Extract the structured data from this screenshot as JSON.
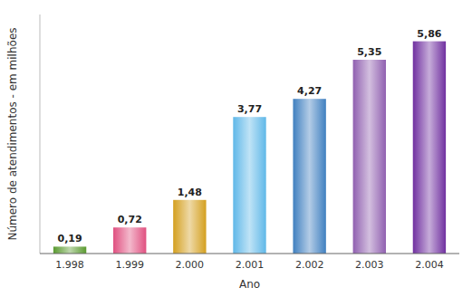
{
  "chart_data": {
    "type": "bar",
    "categories": [
      "1.998",
      "1.999",
      "2.000",
      "2.001",
      "2.002",
      "2.003",
      "2.004"
    ],
    "values": [
      0.19,
      0.72,
      1.48,
      3.77,
      4.27,
      5.35,
      5.86
    ],
    "value_labels": [
      "0,19",
      "0,72",
      "1,48",
      "3,77",
      "4,27",
      "5,35",
      "5,86"
    ],
    "colors": [
      "#5a9a30",
      "#e05080",
      "#d4a020",
      "#60b8e8",
      "#4080c0",
      "#9060b0",
      "#7030a0"
    ],
    "xlabel": "Ano",
    "ylabel": "Número de atendimentos - em milhões",
    "ylim": [
      0,
      6.6
    ],
    "data_labels": true,
    "tick_labels": "x"
  }
}
